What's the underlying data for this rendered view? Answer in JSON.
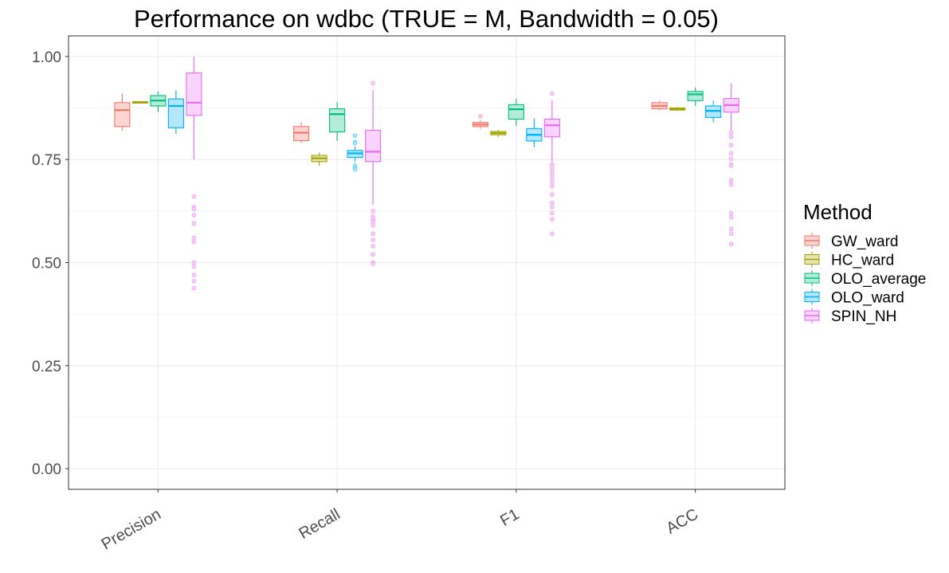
{
  "chart_data": {
    "type": "boxplot",
    "title": "Performance on wdbc (TRUE = M, Bandwidth = 0.05)",
    "xlabel": "",
    "ylabel": "",
    "ylim": [
      -0.05,
      1.05
    ],
    "yticks": [
      "0.00",
      "0.25",
      "0.50",
      "0.75",
      "1.00"
    ],
    "categories": [
      "Precision",
      "Recall",
      "F1",
      "ACC"
    ],
    "grid": true,
    "legend": {
      "title": "Method",
      "position": "right"
    },
    "series": [
      {
        "name": "GW_ward",
        "color": "#F8766D",
        "boxes": [
          {
            "min": 0.82,
            "q1": 0.83,
            "median": 0.87,
            "q3": 0.888,
            "max": 0.91,
            "outliers": []
          },
          {
            "min": 0.79,
            "q1": 0.796,
            "median": 0.815,
            "q3": 0.83,
            "max": 0.84,
            "outliers": []
          },
          {
            "min": 0.825,
            "q1": 0.83,
            "median": 0.835,
            "q3": 0.84,
            "max": 0.845,
            "outliers": [
              0.855
            ]
          },
          {
            "min": 0.87,
            "q1": 0.873,
            "median": 0.88,
            "q3": 0.888,
            "max": 0.893,
            "outliers": []
          }
        ]
      },
      {
        "name": "HC_ward",
        "color": "#A3A500",
        "boxes": [
          {
            "min": 0.886,
            "q1": 0.887,
            "median": 0.889,
            "q3": 0.89,
            "max": 0.891,
            "outliers": []
          },
          {
            "min": 0.735,
            "q1": 0.745,
            "median": 0.753,
            "q3": 0.76,
            "max": 0.767,
            "outliers": []
          },
          {
            "min": 0.805,
            "q1": 0.81,
            "median": 0.814,
            "q3": 0.818,
            "max": 0.822,
            "outliers": []
          },
          {
            "min": 0.868,
            "q1": 0.87,
            "median": 0.873,
            "q3": 0.875,
            "max": 0.878,
            "outliers": []
          }
        ]
      },
      {
        "name": "OLO_average",
        "color": "#00BF7D",
        "boxes": [
          {
            "min": 0.865,
            "q1": 0.88,
            "median": 0.893,
            "q3": 0.905,
            "max": 0.915,
            "outliers": []
          },
          {
            "min": 0.795,
            "q1": 0.817,
            "median": 0.86,
            "q3": 0.873,
            "max": 0.89,
            "outliers": []
          },
          {
            "min": 0.832,
            "q1": 0.848,
            "median": 0.872,
            "q3": 0.883,
            "max": 0.898,
            "outliers": []
          },
          {
            "min": 0.88,
            "q1": 0.893,
            "median": 0.908,
            "q3": 0.915,
            "max": 0.925,
            "outliers": []
          }
        ]
      },
      {
        "name": "OLO_ward",
        "color": "#00B0F6",
        "boxes": [
          {
            "min": 0.812,
            "q1": 0.827,
            "median": 0.88,
            "q3": 0.897,
            "max": 0.918,
            "outliers": []
          },
          {
            "min": 0.745,
            "q1": 0.755,
            "median": 0.765,
            "q3": 0.772,
            "max": 0.782,
            "outliers": [
              0.808,
              0.792,
              0.79,
              0.735,
              0.73,
              0.726
            ]
          },
          {
            "min": 0.78,
            "q1": 0.795,
            "median": 0.81,
            "q3": 0.825,
            "max": 0.85,
            "outliers": []
          },
          {
            "min": 0.84,
            "q1": 0.852,
            "median": 0.868,
            "q3": 0.88,
            "max": 0.893,
            "outliers": []
          }
        ]
      },
      {
        "name": "SPIN_NH",
        "color": "#E76BF3",
        "boxes": [
          {
            "min": 0.75,
            "q1": 0.857,
            "median": 0.888,
            "q3": 0.96,
            "max": 1.0,
            "outliers": [
              0.66,
              0.635,
              0.63,
              0.615,
              0.595,
              0.56,
              0.55,
              0.5,
              0.49,
              0.47,
              0.455,
              0.438
            ]
          },
          {
            "min": 0.64,
            "q1": 0.745,
            "median": 0.769,
            "q3": 0.821,
            "max": 0.918,
            "outliers": [
              0.935,
              0.625,
              0.612,
              0.605,
              0.6,
              0.597,
              0.59,
              0.57,
              0.555,
              0.54,
              0.52,
              0.5,
              0.497
            ]
          },
          {
            "min": 0.745,
            "q1": 0.805,
            "median": 0.833,
            "q3": 0.848,
            "max": 0.893,
            "outliers": [
              0.91,
              0.738,
              0.733,
              0.725,
              0.715,
              0.705,
              0.695,
              0.685,
              0.665,
              0.645,
              0.635,
              0.62,
              0.605,
              0.57
            ]
          },
          {
            "min": 0.82,
            "q1": 0.865,
            "median": 0.882,
            "q3": 0.898,
            "max": 0.935,
            "outliers": [
              0.815,
              0.805,
              0.785,
              0.765,
              0.752,
              0.738,
              0.735,
              0.7,
              0.69,
              0.62,
              0.61,
              0.582,
              0.57,
              0.545
            ]
          }
        ]
      }
    ]
  }
}
